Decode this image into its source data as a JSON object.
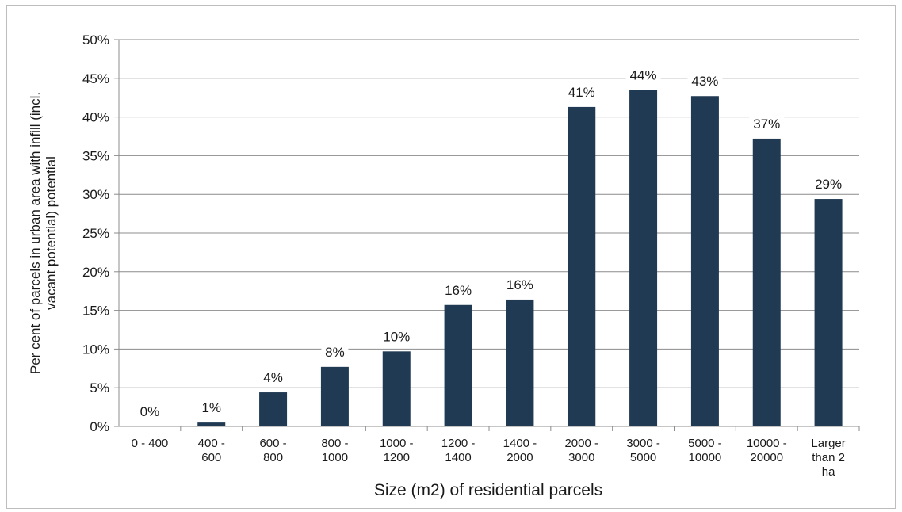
{
  "chart_data": {
    "type": "bar",
    "title": "",
    "xlabel": "Size (m2) of residential parcels",
    "ylabel": "Per cent of parcels in urban area with infill (incl. vacant potential) potential",
    "ylabel_lines": [
      "Per cent of parcels in urban area with infill (incl.",
      "vacant potential) potential"
    ],
    "ylim": [
      0,
      50
    ],
    "yticks": [
      0,
      5,
      10,
      15,
      20,
      25,
      30,
      35,
      40,
      45,
      50
    ],
    "ytick_labels": [
      "0%",
      "5%",
      "10%",
      "15%",
      "20%",
      "25%",
      "30%",
      "35%",
      "40%",
      "45%",
      "50%"
    ],
    "grid": true,
    "legend": "none",
    "bar_color": "#1f3a52",
    "categories": [
      "0 - 400",
      "400 - 600",
      "600 - 800",
      "800 - 1000",
      "1000 - 1200",
      "1200 - 1400",
      "1400 - 2000",
      "2000 - 3000",
      "3000 - 5000",
      "5000 - 10000",
      "10000 - 20000",
      "Larger than 2 ha"
    ],
    "category_lines": [
      [
        "0 - 400"
      ],
      [
        "400 -",
        "600"
      ],
      [
        "600 -",
        "800"
      ],
      [
        "800 -",
        "1000"
      ],
      [
        "1000 -",
        "1200"
      ],
      [
        "1200 -",
        "1400"
      ],
      [
        "1400 -",
        "2000"
      ],
      [
        "2000 -",
        "3000"
      ],
      [
        "3000 -",
        "5000"
      ],
      [
        "5000 -",
        "10000"
      ],
      [
        "10000 -",
        "20000"
      ],
      [
        "Larger",
        "than 2",
        "ha"
      ]
    ],
    "values": [
      0,
      0.5,
      4.4,
      7.7,
      9.7,
      15.7,
      16.4,
      41.3,
      43.5,
      42.7,
      37.2,
      29.4
    ],
    "data_labels": [
      "0%",
      "1%",
      "4%",
      "8%",
      "10%",
      "16%",
      "16%",
      "41%",
      "44%",
      "43%",
      "37%",
      "29%"
    ]
  }
}
